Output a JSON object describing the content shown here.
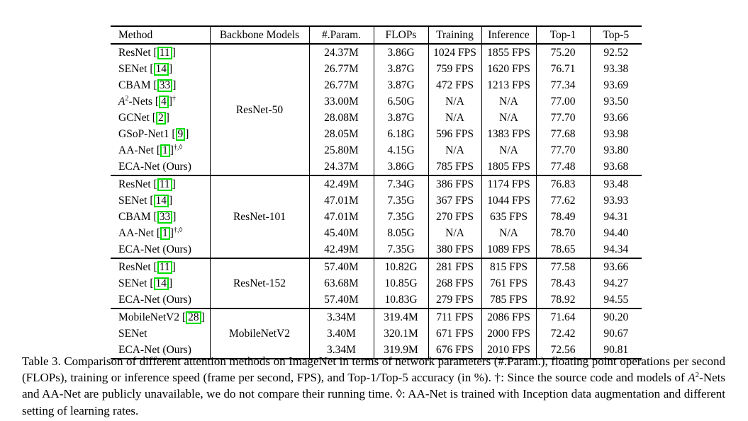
{
  "colors": {
    "citation_box_green": "#00dd00",
    "text": "#000000",
    "background": "#ffffff"
  },
  "table": {
    "headers": [
      "Method",
      "Backbone Models",
      "#.Param.",
      "FLOPs",
      "Training",
      "Inference",
      "Top-1",
      "Top-5"
    ],
    "groups": [
      {
        "backbone": "ResNet-50",
        "rows": [
          {
            "method": [
              {
                "t": "ResNet "
              },
              {
                "t": "11",
                "cite": true
              }
            ],
            "cells": [
              {
                "t": "24.37M",
                "b": true
              },
              {
                "t": "3.86G",
                "b": true
              },
              {
                "t": "1024 FPS",
                "b": true
              },
              {
                "t": "1855 FPS",
                "b": true
              },
              {
                "t": "75.20"
              },
              {
                "t": "92.52"
              }
            ]
          },
          {
            "method": [
              {
                "t": "SENet "
              },
              {
                "t": "14",
                "cite": true
              }
            ],
            "cells": [
              {
                "t": "26.77M"
              },
              {
                "t": "3.87G"
              },
              {
                "t": "759 FPS"
              },
              {
                "t": "1620 FPS"
              },
              {
                "t": "76.71"
              },
              {
                "t": "93.38"
              }
            ]
          },
          {
            "method": [
              {
                "t": "CBAM "
              },
              {
                "t": "33",
                "cite": true
              }
            ],
            "cells": [
              {
                "t": "26.77M"
              },
              {
                "t": "3.87G"
              },
              {
                "t": "472 FPS"
              },
              {
                "t": "1213 FPS"
              },
              {
                "t": "77.34"
              },
              {
                "t": "93.69"
              }
            ]
          },
          {
            "method": [
              {
                "t": "A",
                "i": true
              },
              {
                "t": "2",
                "sup": true
              },
              {
                "t": "-Nets "
              },
              {
                "t": "4",
                "cite": true
              },
              {
                "t": "†",
                "sup": true
              }
            ],
            "cells": [
              {
                "t": "33.00M"
              },
              {
                "t": "6.50G"
              },
              {
                "t": "N/A"
              },
              {
                "t": "N/A"
              },
              {
                "t": "77.00"
              },
              {
                "t": "93.50"
              }
            ]
          },
          {
            "method": [
              {
                "t": "GCNet "
              },
              {
                "t": "2",
                "cite": true
              }
            ],
            "cells": [
              {
                "t": "28.08M"
              },
              {
                "t": "3.87G"
              },
              {
                "t": "N/A"
              },
              {
                "t": "N/A"
              },
              {
                "t": "77.70"
              },
              {
                "t": "93.66"
              }
            ]
          },
          {
            "method": [
              {
                "t": "GSoP-Net1 "
              },
              {
                "t": "9",
                "cite": true
              }
            ],
            "cells": [
              {
                "t": "28.05M"
              },
              {
                "t": "6.18G"
              },
              {
                "t": "596 FPS"
              },
              {
                "t": "1383 FPS"
              },
              {
                "t": "77.68"
              },
              {
                "t": "93.98",
                "b": true
              }
            ]
          },
          {
            "method": [
              {
                "t": "AA-Net "
              },
              {
                "t": "1",
                "cite": true
              },
              {
                "t": "†,◊",
                "sup": true
              }
            ],
            "cells": [
              {
                "t": "25.80M"
              },
              {
                "t": "4.15G"
              },
              {
                "t": "N/A"
              },
              {
                "t": "N/A"
              },
              {
                "t": "77.70",
                "b": true
              },
              {
                "t": "93.80"
              }
            ]
          },
          {
            "method": [
              {
                "t": "ECA-Net (Ours)"
              }
            ],
            "cells": [
              {
                "t": "24.37M",
                "b": true
              },
              {
                "t": "3.86G",
                "b": true
              },
              {
                "t": "785 FPS"
              },
              {
                "t": "1805 FPS"
              },
              {
                "t": "77.48"
              },
              {
                "t": "93.68"
              }
            ]
          }
        ]
      },
      {
        "backbone": "ResNet-101",
        "rows": [
          {
            "method": [
              {
                "t": "ResNet "
              },
              {
                "t": "11",
                "cite": true
              }
            ],
            "cells": [
              {
                "t": "42.49M",
                "b": true
              },
              {
                "t": "7.34G",
                "b": true
              },
              {
                "t": "386 FPS",
                "b": true
              },
              {
                "t": "1174 FPS",
                "b": true
              },
              {
                "t": "76.83"
              },
              {
                "t": "93.48"
              }
            ]
          },
          {
            "method": [
              {
                "t": "SENet "
              },
              {
                "t": "14",
                "cite": true
              }
            ],
            "cells": [
              {
                "t": "47.01M"
              },
              {
                "t": "7.35G"
              },
              {
                "t": "367 FPS"
              },
              {
                "t": "1044 FPS"
              },
              {
                "t": "77.62"
              },
              {
                "t": "93.93"
              }
            ]
          },
          {
            "method": [
              {
                "t": "CBAM "
              },
              {
                "t": "33",
                "cite": true
              }
            ],
            "cells": [
              {
                "t": "47.01M"
              },
              {
                "t": "7.35G"
              },
              {
                "t": "270 FPS"
              },
              {
                "t": "635 FPS"
              },
              {
                "t": "78.49"
              },
              {
                "t": "94.31"
              }
            ]
          },
          {
            "method": [
              {
                "t": "AA-Net "
              },
              {
                "t": "1",
                "cite": true
              },
              {
                "t": "†,◊",
                "sup": true
              }
            ],
            "cells": [
              {
                "t": "45.40M"
              },
              {
                "t": "8.05G"
              },
              {
                "t": "N/A"
              },
              {
                "t": "N/A"
              },
              {
                "t": "78.70",
                "b": true
              },
              {
                "t": "94.40",
                "b": true
              }
            ]
          },
          {
            "method": [
              {
                "t": "ECA-Net (Ours)"
              }
            ],
            "cells": [
              {
                "t": "42.49M",
                "b": true
              },
              {
                "t": "7.35G"
              },
              {
                "t": "380 FPS"
              },
              {
                "t": "1089 FPS"
              },
              {
                "t": "78.65"
              },
              {
                "t": "94.34"
              }
            ]
          }
        ]
      },
      {
        "backbone": "ResNet-152",
        "rows": [
          {
            "method": [
              {
                "t": "ResNet "
              },
              {
                "t": "11",
                "cite": true
              }
            ],
            "cells": [
              {
                "t": "57.40M",
                "b": true
              },
              {
                "t": "10.82G",
                "b": true
              },
              {
                "t": "281 FPS",
                "b": true
              },
              {
                "t": "815 FPS",
                "b": true
              },
              {
                "t": "77.58"
              },
              {
                "t": "93.66"
              }
            ]
          },
          {
            "method": [
              {
                "t": "SENet "
              },
              {
                "t": "14",
                "cite": true
              }
            ],
            "cells": [
              {
                "t": "63.68M"
              },
              {
                "t": "10.85G"
              },
              {
                "t": "268 FPS"
              },
              {
                "t": "761 FPS"
              },
              {
                "t": "78.43"
              },
              {
                "t": "94.27"
              }
            ]
          },
          {
            "method": [
              {
                "t": "ECA-Net (Ours)"
              }
            ],
            "cells": [
              {
                "t": "57.40M",
                "b": true
              },
              {
                "t": "10.83G"
              },
              {
                "t": "279 FPS"
              },
              {
                "t": "785 FPS"
              },
              {
                "t": "78.92",
                "b": true
              },
              {
                "t": "94.55",
                "b": true
              }
            ]
          }
        ]
      },
      {
        "backbone": "MobileNetV2",
        "rows": [
          {
            "method": [
              {
                "t": "MobileNetV2 "
              },
              {
                "t": "28",
                "cite": true
              }
            ],
            "cells": [
              {
                "t": "3.34M",
                "b": true
              },
              {
                "t": "319.4M",
                "b": true
              },
              {
                "t": "711 FPS",
                "b": true
              },
              {
                "t": "2086 FPS",
                "b": true
              },
              {
                "t": "71.64"
              },
              {
                "t": "90.20"
              }
            ]
          },
          {
            "method": [
              {
                "t": "SENet"
              }
            ],
            "cells": [
              {
                "t": "3.40M"
              },
              {
                "t": "320.1M"
              },
              {
                "t": "671 FPS"
              },
              {
                "t": "2000 FPS"
              },
              {
                "t": "72.42"
              },
              {
                "t": "90.67"
              }
            ]
          },
          {
            "method": [
              {
                "t": "ECA-Net (Ours)"
              }
            ],
            "cells": [
              {
                "t": "3.34M",
                "b": true
              },
              {
                "t": "319.9M"
              },
              {
                "t": "676 FPS"
              },
              {
                "t": "2010 FPS"
              },
              {
                "t": "72.56",
                "b": true
              },
              {
                "t": "90.81",
                "b": true
              }
            ]
          }
        ]
      }
    ]
  },
  "caption": {
    "segments": [
      {
        "t": "Table 3. Comparison of different attention methods on ImageNet in terms of network parameters (#.Param.), floating point operations per second (FLOPs), training or inference speed (frame per second, FPS), and Top-1/Top-5 accuracy (in %). †: Since the source code and models of "
      },
      {
        "t": "A",
        "i": true
      },
      {
        "t": "2",
        "sup": true
      },
      {
        "t": "-Nets and AA-Net are publicly unavailable, we do not compare their running time. ◊: AA-Net is trained with Inception data augmentation and different setting of learning rates."
      }
    ]
  }
}
